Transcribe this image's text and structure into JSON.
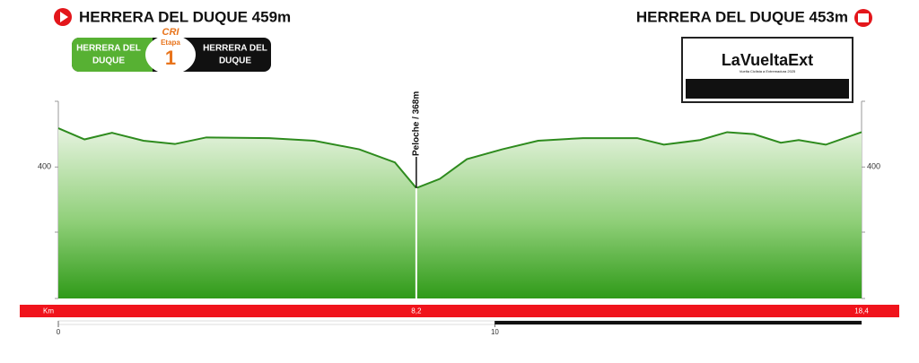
{
  "chart_data": {
    "type": "area",
    "start_label": "HERRERA DEL DUQUE 459m",
    "finish_label": "HERRERA DEL DUQUE 453m",
    "badge": {
      "left": [
        "HERRERA DEL",
        "DUQUE"
      ],
      "stage_word": "Etapa",
      "stage_number": "1",
      "stage_type": "CRI",
      "right": [
        "HERRERA DEL",
        "DUQUE"
      ]
    },
    "logo": {
      "name": "LaVueltaExt",
      "subtitle": "Vuelta Ciclista a Extremadura 2025"
    },
    "x": [
      0,
      0.6,
      1.23,
      1.95,
      2.67,
      3.39,
      4.83,
      5.86,
      6.89,
      7.71,
      8.2,
      8.74,
      9.36,
      10.17,
      10.99,
      12.02,
      13.26,
      13.87,
      14.7,
      15.32,
      15.93,
      16.55,
      16.96,
      17.58,
      18.4
    ],
    "values": [
      459,
      442,
      452,
      440,
      435,
      445,
      444,
      440,
      427,
      407,
      368,
      382,
      412,
      427,
      440,
      444,
      444,
      434,
      441,
      453,
      450,
      437,
      441,
      434,
      453
    ],
    "color": "#2e8b1e",
    "xlim": [
      0,
      18.4
    ],
    "xticks": [
      0,
      10
    ],
    "ylim": [
      200,
      500
    ],
    "yticks": [
      400
    ],
    "summit": {
      "x": 8.2,
      "label": "Peloche / 368m"
    },
    "km_label": "Km",
    "km_markers": [
      {
        "value": 8.2,
        "label": "8,2"
      },
      {
        "value": 18.4,
        "label": "18,4"
      }
    ]
  }
}
